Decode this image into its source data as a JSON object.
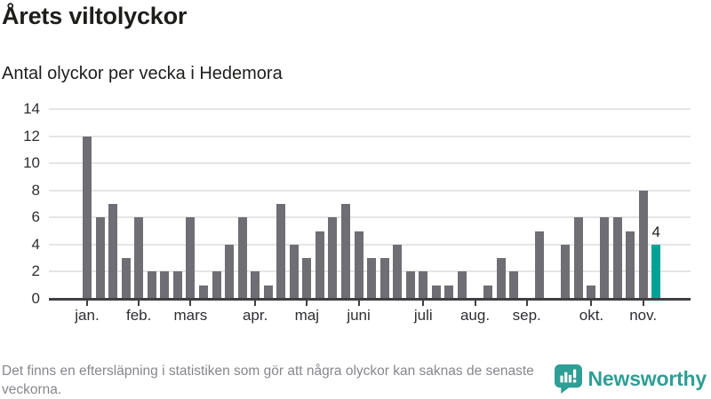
{
  "header": {
    "title": "Årets viltolyckor",
    "subtitle": "Antal olyckor per vecka i Hedemora"
  },
  "chart_data": {
    "type": "bar",
    "title": "Årets viltolyckor",
    "subtitle": "Antal olyckor per vecka i Hedemora",
    "xlabel": "",
    "ylabel": "",
    "x_unit": "vecka",
    "values": [
      12,
      6,
      7,
      3,
      6,
      2,
      2,
      2,
      6,
      1,
      2,
      4,
      6,
      2,
      1,
      7,
      4,
      3,
      5,
      6,
      7,
      5,
      3,
      3,
      4,
      2,
      2,
      1,
      1,
      2,
      0,
      1,
      3,
      2,
      0,
      5,
      0,
      4,
      6,
      1,
      6,
      6,
      5,
      8,
      4
    ],
    "highlight": {
      "index": 44,
      "label": "4",
      "value": 4
    },
    "month_ticks": [
      {
        "label": "jan.",
        "index": 0
      },
      {
        "label": "feb.",
        "index": 4
      },
      {
        "label": "mars",
        "index": 8
      },
      {
        "label": "apr.",
        "index": 13
      },
      {
        "label": "maj",
        "index": 17
      },
      {
        "label": "juni",
        "index": 21
      },
      {
        "label": "juli",
        "index": 26
      },
      {
        "label": "aug.",
        "index": 30
      },
      {
        "label": "sep.",
        "index": 34
      },
      {
        "label": "okt.",
        "index": 39
      },
      {
        "label": "nov.",
        "index": 43
      }
    ],
    "y_ticks": [
      0,
      2,
      4,
      6,
      8,
      10,
      12,
      14
    ],
    "ylim": [
      0,
      14
    ],
    "grid": "horizontal",
    "legend": "none",
    "colors": {
      "bar": "#6e6e74",
      "highlight": "#00a298",
      "gridline": "#e5e5e5",
      "axis": "#3f3f44",
      "tick_label": "#2f2f33",
      "value_label": "#1d1d1b"
    }
  },
  "footer": {
    "note": "Det finns en eftersläpning i statistiken som gör att några olyckor kan saknas de senaste veckorna.",
    "brand": "Newsworthy",
    "brand_color": "#2f9e95"
  }
}
